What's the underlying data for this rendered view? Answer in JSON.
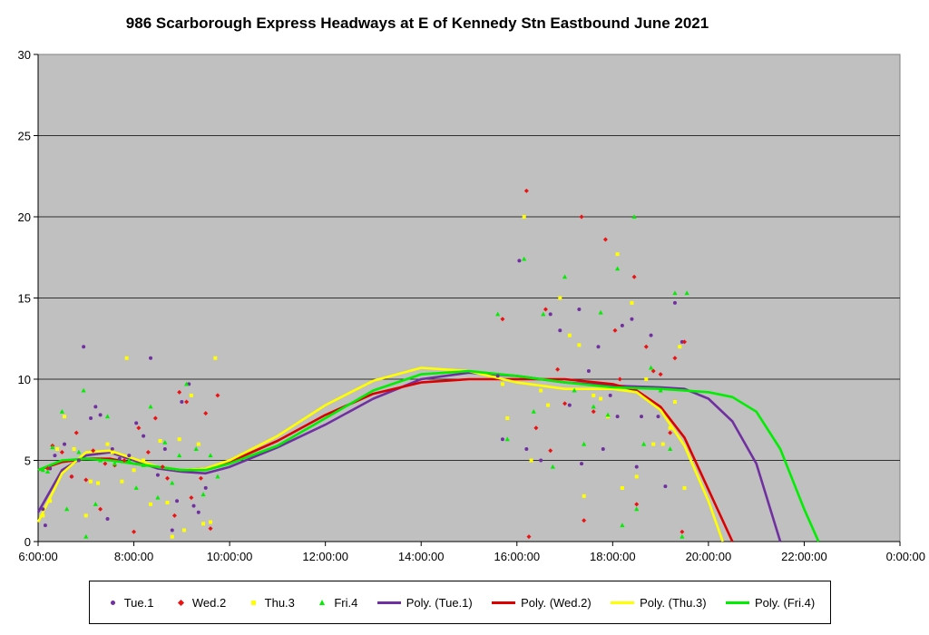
{
  "chart_data": {
    "type": "scatter",
    "title": "986 Scarborough Express Headways at E of Kennedy Stn Eastbound June 2021",
    "xlabel": "",
    "ylabel": "",
    "x_ticks": [
      "6:00:00",
      "8:00:00",
      "10:00:00",
      "12:00:00",
      "14:00:00",
      "16:00:00",
      "18:00:00",
      "20:00:00",
      "22:00:00",
      "0:00:00"
    ],
    "y_ticks": [
      "0",
      "5",
      "10",
      "15",
      "20",
      "25",
      "30"
    ],
    "xlim_hours": [
      6,
      24
    ],
    "ylim": [
      0,
      30
    ],
    "grid": "horizontal",
    "background": "#c0c0c0",
    "legend_position": "bottom",
    "series": [
      {
        "name": "Tue.1",
        "marker": "circle",
        "color": "#7030a0",
        "points": [
          [
            6.1,
            2
          ],
          [
            6.15,
            1
          ],
          [
            6.25,
            4.5
          ],
          [
            6.35,
            5.3
          ],
          [
            6.55,
            6
          ],
          [
            6.7,
            4
          ],
          [
            6.85,
            5
          ],
          [
            6.95,
            12
          ],
          [
            7.1,
            7.6
          ],
          [
            7.2,
            8.3
          ],
          [
            7.3,
            7.8
          ],
          [
            7.45,
            1.4
          ],
          [
            7.55,
            5.7
          ],
          [
            7.7,
            5.1
          ],
          [
            7.9,
            5.3
          ],
          [
            8.05,
            7.3
          ],
          [
            8.2,
            6.5
          ],
          [
            8.35,
            11.3
          ],
          [
            8.5,
            4.1
          ],
          [
            8.65,
            5.7
          ],
          [
            8.8,
            0.7
          ],
          [
            8.9,
            2.5
          ],
          [
            9.0,
            8.6
          ],
          [
            9.15,
            9.7
          ],
          [
            9.25,
            2.2
          ],
          [
            9.35,
            1.8
          ],
          [
            9.5,
            3.3
          ],
          [
            15.6,
            10.2
          ],
          [
            15.7,
            6.3
          ],
          [
            16.05,
            17.3
          ],
          [
            16.2,
            5.7
          ],
          [
            16.5,
            5
          ],
          [
            16.7,
            14
          ],
          [
            16.9,
            13
          ],
          [
            17.1,
            8.4
          ],
          [
            17.3,
            14.3
          ],
          [
            17.35,
            4.8
          ],
          [
            17.5,
            10.5
          ],
          [
            17.7,
            12
          ],
          [
            17.8,
            5.7
          ],
          [
            17.95,
            9
          ],
          [
            18.1,
            7.7
          ],
          [
            18.2,
            13.3
          ],
          [
            18.4,
            13.7
          ],
          [
            18.5,
            4.6
          ],
          [
            18.6,
            7.7
          ],
          [
            18.8,
            12.7
          ],
          [
            18.95,
            7.7
          ],
          [
            19.1,
            3.4
          ],
          [
            19.3,
            14.7
          ],
          [
            19.45,
            12.3
          ]
        ]
      },
      {
        "name": "Wed.2",
        "marker": "diamond",
        "color": "#ee1111",
        "points": [
          [
            6.2,
            4.5
          ],
          [
            6.3,
            5.9
          ],
          [
            6.5,
            5.5
          ],
          [
            6.7,
            4
          ],
          [
            6.8,
            6.7
          ],
          [
            7.0,
            3.8
          ],
          [
            7.15,
            5.6
          ],
          [
            7.3,
            2
          ],
          [
            7.4,
            4.8
          ],
          [
            7.6,
            4.7
          ],
          [
            7.8,
            5
          ],
          [
            8.0,
            0.6
          ],
          [
            8.1,
            7.0
          ],
          [
            8.3,
            5.5
          ],
          [
            8.45,
            7.6
          ],
          [
            8.6,
            4.6
          ],
          [
            8.7,
            3.9
          ],
          [
            8.85,
            1.6
          ],
          [
            8.95,
            9.2
          ],
          [
            9.1,
            8.6
          ],
          [
            9.2,
            2.7
          ],
          [
            9.4,
            3.9
          ],
          [
            9.5,
            7.9
          ],
          [
            9.6,
            0.8
          ],
          [
            9.75,
            9
          ],
          [
            15.7,
            13.7
          ],
          [
            16.2,
            21.6
          ],
          [
            16.25,
            0.3
          ],
          [
            16.4,
            7
          ],
          [
            16.6,
            14.3
          ],
          [
            16.7,
            5.6
          ],
          [
            16.85,
            10.6
          ],
          [
            17.0,
            8.5
          ],
          [
            17.35,
            20
          ],
          [
            17.4,
            1.3
          ],
          [
            17.6,
            8
          ],
          [
            17.85,
            18.6
          ],
          [
            18.05,
            13
          ],
          [
            18.15,
            10
          ],
          [
            18.45,
            16.3
          ],
          [
            18.5,
            2.3
          ],
          [
            18.7,
            12
          ],
          [
            18.85,
            10.5
          ],
          [
            19.0,
            10.3
          ],
          [
            19.2,
            6.7
          ],
          [
            19.3,
            11.3
          ],
          [
            19.45,
            0.6
          ],
          [
            19.5,
            12.3
          ]
        ]
      },
      {
        "name": "Thu.3",
        "marker": "square",
        "color": "#ffff00",
        "points": [
          [
            6.1,
            1.6
          ],
          [
            6.25,
            2.5
          ],
          [
            6.4,
            5.7
          ],
          [
            6.55,
            7.7
          ],
          [
            6.75,
            5.7
          ],
          [
            7.0,
            1.6
          ],
          [
            7.1,
            3.7
          ],
          [
            7.25,
            3.6
          ],
          [
            7.45,
            6
          ],
          [
            7.55,
            5.5
          ],
          [
            7.75,
            3.7
          ],
          [
            7.85,
            11.3
          ],
          [
            8.0,
            4.4
          ],
          [
            8.2,
            5
          ],
          [
            8.35,
            2.3
          ],
          [
            8.55,
            6.2
          ],
          [
            8.7,
            2.4
          ],
          [
            8.8,
            0.3
          ],
          [
            8.95,
            6.3
          ],
          [
            9.05,
            0.7
          ],
          [
            9.2,
            9
          ],
          [
            9.35,
            6
          ],
          [
            9.45,
            1.1
          ],
          [
            9.6,
            1.2
          ],
          [
            9.7,
            11.3
          ],
          [
            15.7,
            9.7
          ],
          [
            15.8,
            7.6
          ],
          [
            16.15,
            20
          ],
          [
            16.3,
            5
          ],
          [
            16.5,
            9.3
          ],
          [
            16.65,
            8.4
          ],
          [
            16.9,
            15
          ],
          [
            17.1,
            12.7
          ],
          [
            17.3,
            12.1
          ],
          [
            17.4,
            2.8
          ],
          [
            17.6,
            9
          ],
          [
            17.75,
            8.8
          ],
          [
            17.9,
            7.7
          ],
          [
            18.1,
            17.7
          ],
          [
            18.2,
            3.3
          ],
          [
            18.4,
            14.7
          ],
          [
            18.5,
            4
          ],
          [
            18.7,
            10
          ],
          [
            18.85,
            6
          ],
          [
            19.05,
            6
          ],
          [
            19.2,
            7
          ],
          [
            19.3,
            8.6
          ],
          [
            19.4,
            12
          ],
          [
            19.5,
            3.3
          ]
        ]
      },
      {
        "name": "Fri.4",
        "marker": "triangle",
        "color": "#00ee00",
        "points": [
          [
            6.1,
            4.4
          ],
          [
            6.2,
            4.3
          ],
          [
            6.3,
            5.8
          ],
          [
            6.5,
            8
          ],
          [
            6.6,
            2
          ],
          [
            6.85,
            5.5
          ],
          [
            6.95,
            9.3
          ],
          [
            7.0,
            0.3
          ],
          [
            7.2,
            2.3
          ],
          [
            7.3,
            5
          ],
          [
            7.45,
            7.7
          ],
          [
            7.6,
            4.8
          ],
          [
            7.9,
            5
          ],
          [
            8.05,
            3.3
          ],
          [
            8.2,
            4.7
          ],
          [
            8.35,
            8.3
          ],
          [
            8.5,
            2.7
          ],
          [
            8.65,
            6.1
          ],
          [
            8.8,
            3.6
          ],
          [
            8.95,
            5.3
          ],
          [
            9.1,
            9.7
          ],
          [
            9.3,
            5.7
          ],
          [
            9.45,
            2.9
          ],
          [
            9.6,
            5.3
          ],
          [
            9.75,
            4
          ],
          [
            15.6,
            14
          ],
          [
            15.8,
            6.3
          ],
          [
            16.15,
            17.4
          ],
          [
            16.35,
            8
          ],
          [
            16.55,
            14
          ],
          [
            16.75,
            4.6
          ],
          [
            17.0,
            16.3
          ],
          [
            17.2,
            9.3
          ],
          [
            17.4,
            6
          ],
          [
            17.6,
            8.3
          ],
          [
            17.75,
            14.1
          ],
          [
            17.9,
            7.8
          ],
          [
            18.1,
            16.8
          ],
          [
            18.2,
            1
          ],
          [
            18.45,
            20
          ],
          [
            18.5,
            2
          ],
          [
            18.65,
            6
          ],
          [
            18.8,
            10.7
          ],
          [
            19.0,
            9.3
          ],
          [
            19.2,
            5.7
          ],
          [
            19.3,
            15.3
          ],
          [
            19.45,
            0.3
          ],
          [
            19.55,
            15.3
          ]
        ]
      },
      {
        "name": "Poly. (Tue.1)",
        "type": "line",
        "color": "#7030a0",
        "points": [
          [
            6,
            1.8
          ],
          [
            6.5,
            4.4
          ],
          [
            7,
            5.3
          ],
          [
            7.5,
            5.5
          ],
          [
            8,
            5
          ],
          [
            8.5,
            4.5
          ],
          [
            9,
            4.3
          ],
          [
            9.5,
            4.2
          ],
          [
            10,
            4.6
          ],
          [
            11,
            5.8
          ],
          [
            12,
            7.2
          ],
          [
            13,
            8.8
          ],
          [
            14,
            10
          ],
          [
            15,
            10.4
          ],
          [
            16,
            10.2
          ],
          [
            17,
            9.8
          ],
          [
            18,
            9.6
          ],
          [
            19,
            9.5
          ],
          [
            19.5,
            9.4
          ],
          [
            20,
            8.8
          ],
          [
            20.5,
            7.4
          ],
          [
            21,
            4.8
          ],
          [
            21.5,
            0
          ]
        ]
      },
      {
        "name": "Poly. (Wed.2)",
        "type": "line",
        "color": "#dd0000",
        "points": [
          [
            6,
            4.4
          ],
          [
            6.5,
            4.9
          ],
          [
            7,
            5.1
          ],
          [
            7.5,
            5.1
          ],
          [
            8,
            4.8
          ],
          [
            8.5,
            4.6
          ],
          [
            9,
            4.4
          ],
          [
            9.5,
            4.5
          ],
          [
            10,
            4.9
          ],
          [
            11,
            6.2
          ],
          [
            12,
            7.8
          ],
          [
            13,
            9.1
          ],
          [
            14,
            9.8
          ],
          [
            15,
            10
          ],
          [
            16,
            10
          ],
          [
            17,
            10
          ],
          [
            18,
            9.7
          ],
          [
            18.5,
            9.3
          ],
          [
            19,
            8.3
          ],
          [
            19.5,
            6.4
          ],
          [
            20,
            3.2
          ],
          [
            20.5,
            0
          ]
        ]
      },
      {
        "name": "Poly. (Thu.3)",
        "type": "line",
        "color": "#ffff00",
        "points": [
          [
            6,
            1.2
          ],
          [
            6.5,
            4.2
          ],
          [
            7,
            5.5
          ],
          [
            7.5,
            5.6
          ],
          [
            8,
            5.1
          ],
          [
            8.5,
            4.6
          ],
          [
            9,
            4.4
          ],
          [
            9.5,
            4.5
          ],
          [
            10,
            5
          ],
          [
            11,
            6.5
          ],
          [
            12,
            8.4
          ],
          [
            13,
            9.9
          ],
          [
            14,
            10.7
          ],
          [
            15,
            10.5
          ],
          [
            16,
            9.8
          ],
          [
            17,
            9.4
          ],
          [
            18,
            9.4
          ],
          [
            18.5,
            9.2
          ],
          [
            19,
            8.1
          ],
          [
            19.5,
            5.9
          ],
          [
            20,
            2.5
          ],
          [
            20.3,
            0
          ]
        ]
      },
      {
        "name": "Poly. (Fri.4)",
        "type": "line",
        "color": "#00ee00",
        "points": [
          [
            6,
            4.4
          ],
          [
            6.5,
            5
          ],
          [
            7,
            5.1
          ],
          [
            7.5,
            5
          ],
          [
            8,
            4.8
          ],
          [
            8.5,
            4.6
          ],
          [
            9,
            4.4
          ],
          [
            9.5,
            4.4
          ],
          [
            10,
            4.8
          ],
          [
            11,
            5.9
          ],
          [
            12,
            7.6
          ],
          [
            13,
            9.3
          ],
          [
            14,
            10.3
          ],
          [
            15,
            10.5
          ],
          [
            16,
            10.2
          ],
          [
            17,
            9.8
          ],
          [
            18,
            9.5
          ],
          [
            19,
            9.4
          ],
          [
            20,
            9.2
          ],
          [
            20.5,
            8.9
          ],
          [
            21,
            8
          ],
          [
            21.5,
            5.7
          ],
          [
            22,
            2
          ],
          [
            22.3,
            0
          ]
        ]
      }
    ]
  }
}
